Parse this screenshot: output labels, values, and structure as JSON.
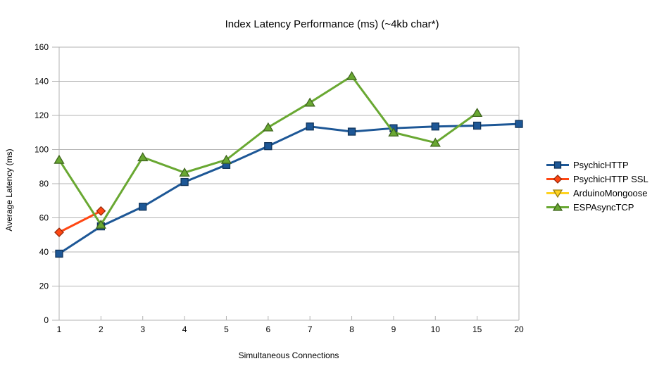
{
  "chart_data": {
    "type": "line",
    "title": "Index Latency Performance (ms) (~4kb char*)",
    "xlabel": "Simultaneous Connections",
    "ylabel": "Average Latency (ms)",
    "categories": [
      "1",
      "2",
      "3",
      "4",
      "5",
      "6",
      "7",
      "8",
      "9",
      "10",
      "15",
      "20"
    ],
    "ylim": [
      0,
      160
    ],
    "yticks": [
      "0",
      "20",
      "40",
      "60",
      "80",
      "100",
      "120",
      "140",
      "160"
    ],
    "grid": "horizontal-only",
    "legend_position": "right",
    "colors": {
      "grid": "#b3b3b3",
      "axis": "#b3b3b3",
      "text": "#000000",
      "background": "#ffffff"
    },
    "series": [
      {
        "name": "PsychicHTTP",
        "color": "#1D5796",
        "marker": "square",
        "values": [
          39,
          55,
          66.5,
          81,
          91,
          102,
          113.5,
          110.5,
          112.5,
          113.5,
          114,
          115
        ]
      },
      {
        "name": "PsychicHTTP SSL",
        "color": "#FF4713",
        "marker": "diamond",
        "values": [
          51.5,
          64,
          null,
          null,
          null,
          null,
          null,
          null,
          null,
          null,
          null,
          null
        ]
      },
      {
        "name": "ArduinoMongoose",
        "color": "#FFD320",
        "marker": "triangle-down",
        "values": [
          null,
          null,
          null,
          null,
          null,
          null,
          null,
          null,
          null,
          null,
          null,
          null
        ]
      },
      {
        "name": "ESPAsyncTCP",
        "color": "#69A832",
        "marker": "triangle-up",
        "values": [
          94,
          56,
          95.5,
          86.5,
          94,
          113,
          127.5,
          143,
          110,
          104,
          121.5,
          null
        ]
      }
    ]
  }
}
